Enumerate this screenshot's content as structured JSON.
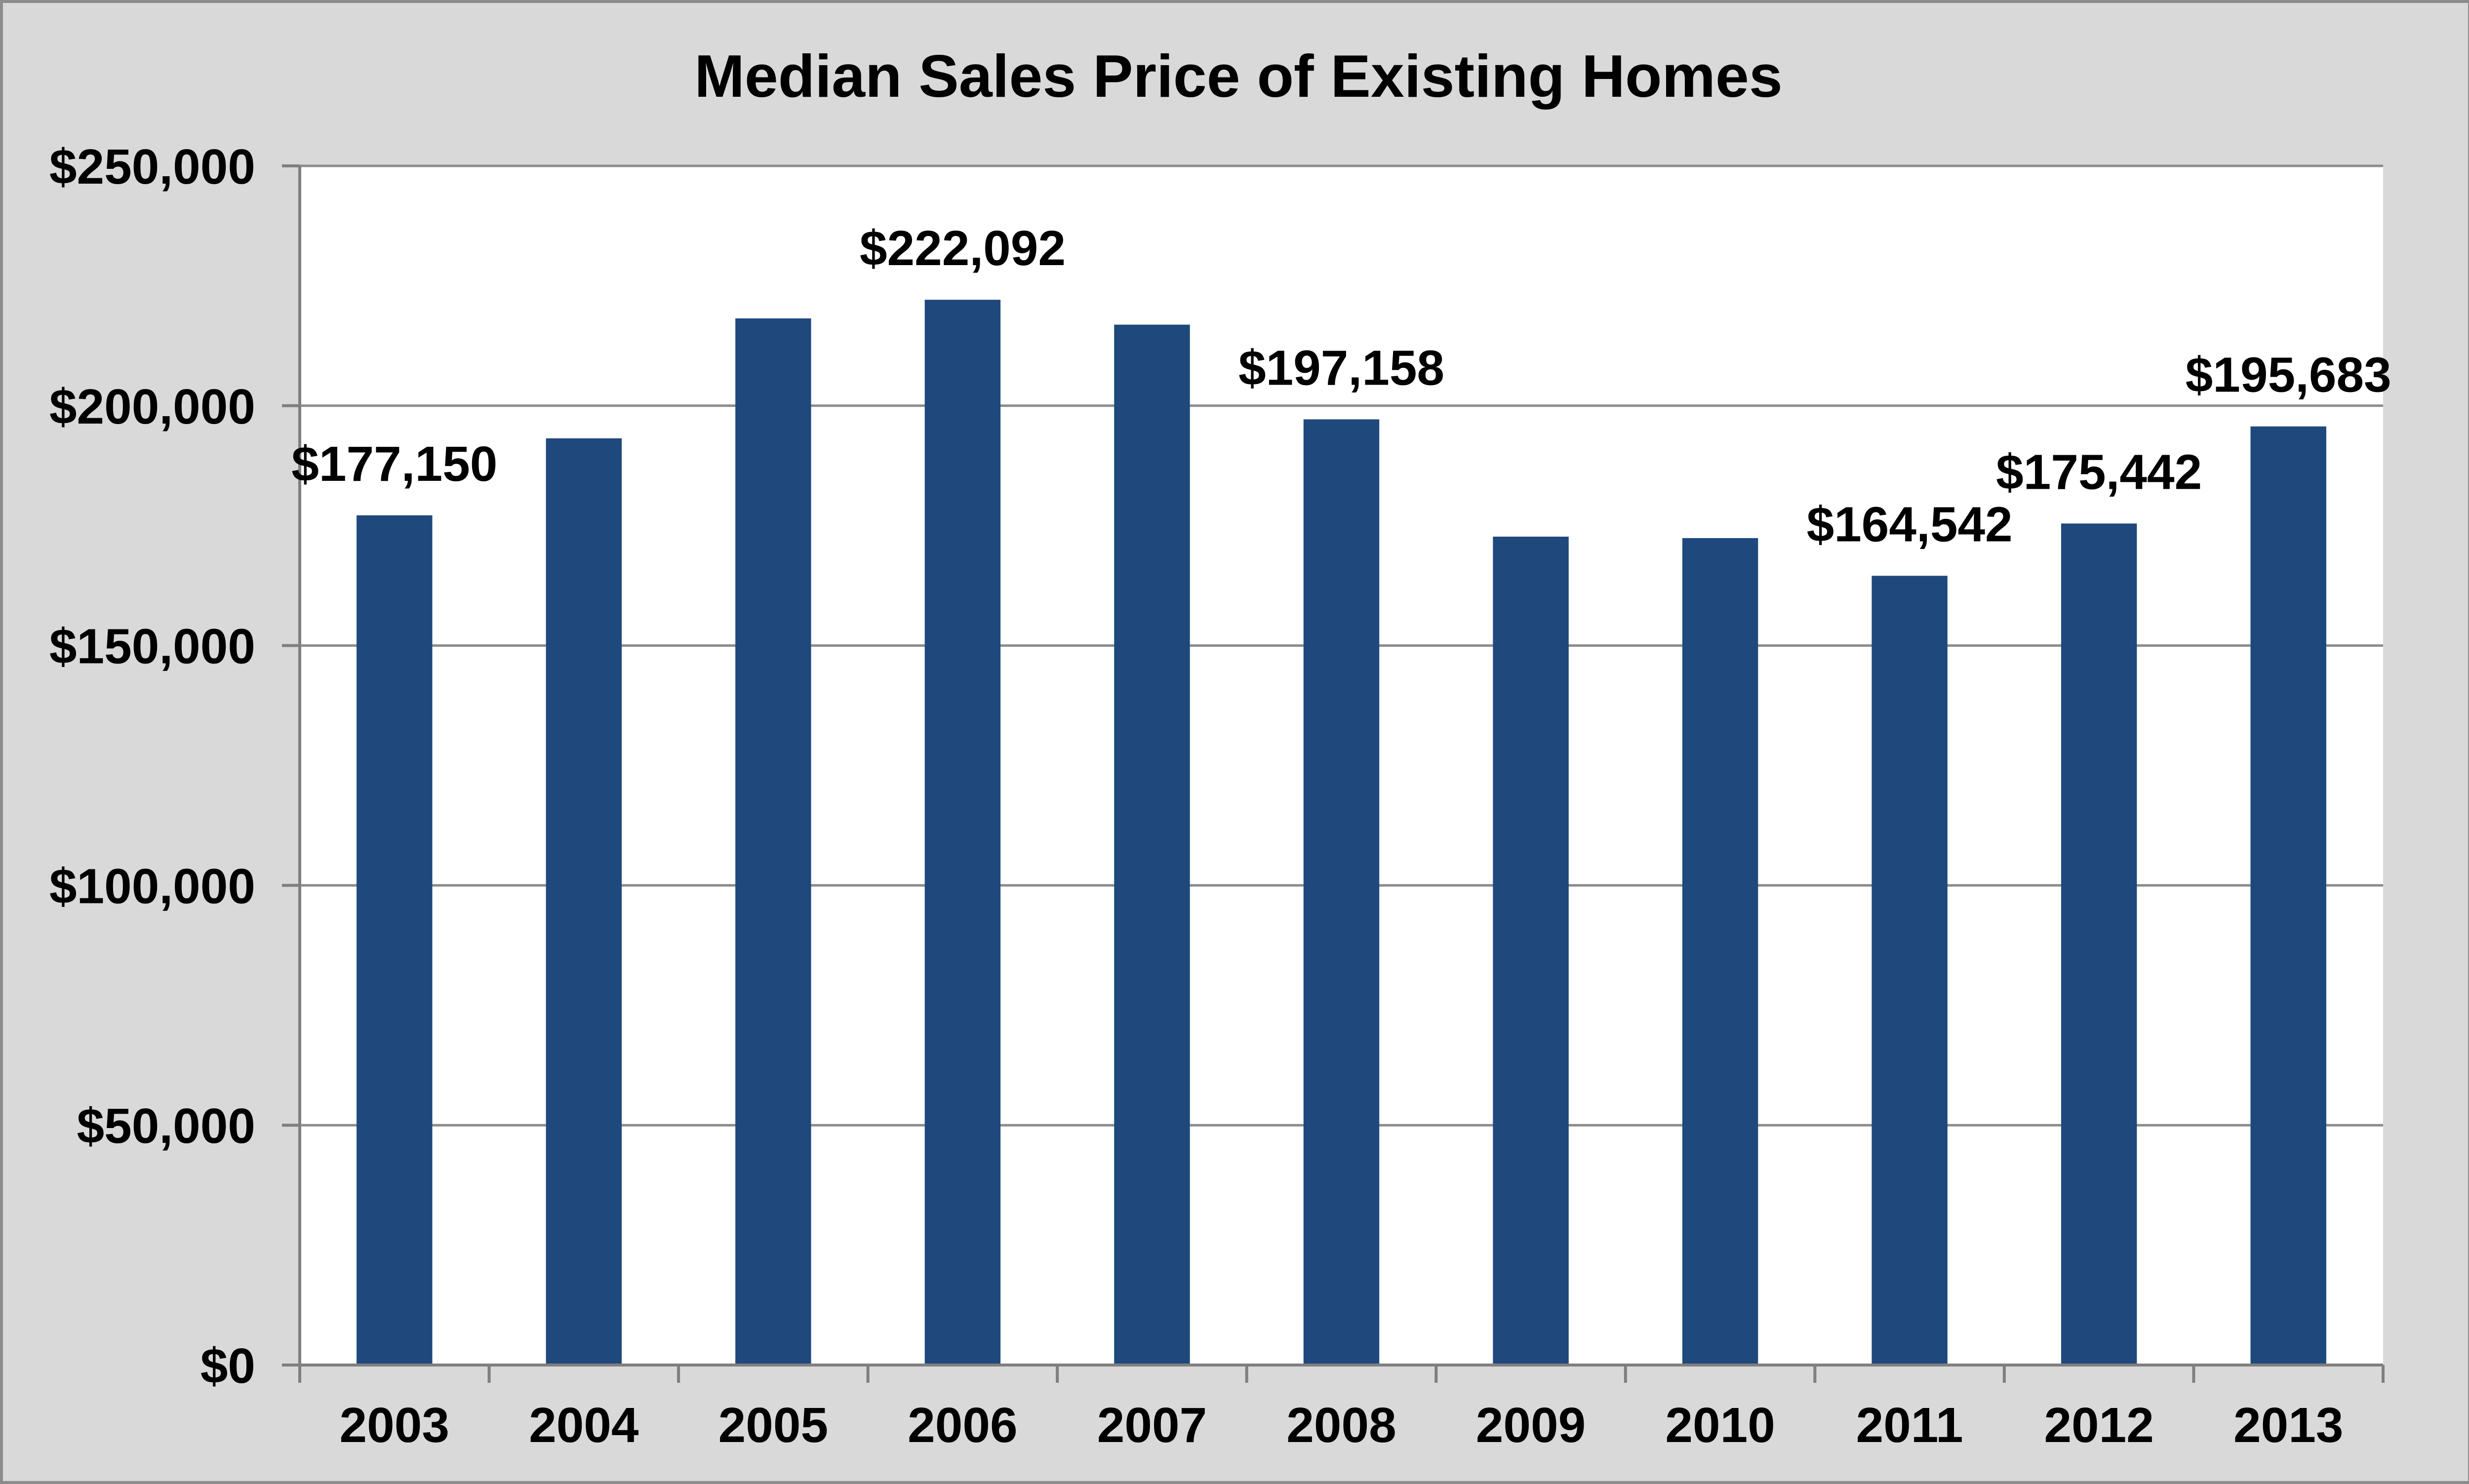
{
  "chart_data": {
    "type": "bar",
    "title": "Median Sales Price of Existing Homes",
    "xlabel": "",
    "ylabel": "",
    "categories": [
      "2003",
      "2004",
      "2005",
      "2006",
      "2007",
      "2008",
      "2009",
      "2010",
      "2011",
      "2012",
      "2013"
    ],
    "values": [
      177150,
      193200,
      218200,
      222092,
      216900,
      197158,
      172700,
      172400,
      164542,
      175442,
      195683
    ],
    "data_labels": [
      "$177,150",
      null,
      null,
      "$222,092",
      null,
      "$197,158",
      null,
      null,
      "$164,542",
      "$175,442",
      "$195,683"
    ],
    "ylim": [
      0,
      250000
    ],
    "yticks": [
      0,
      50000,
      100000,
      150000,
      200000,
      250000
    ],
    "ytick_labels": [
      "$0",
      "$50,000",
      "$100,000",
      "$150,000",
      "$200,000",
      "$250,000"
    ],
    "grid": true,
    "legend": "none",
    "colors": {
      "bar": "#1f497d",
      "plot_background": "#ffffff",
      "figure_background": "#d9d9d9",
      "gridline": "#8c8c8c",
      "axis": "#7f7f7f"
    }
  }
}
